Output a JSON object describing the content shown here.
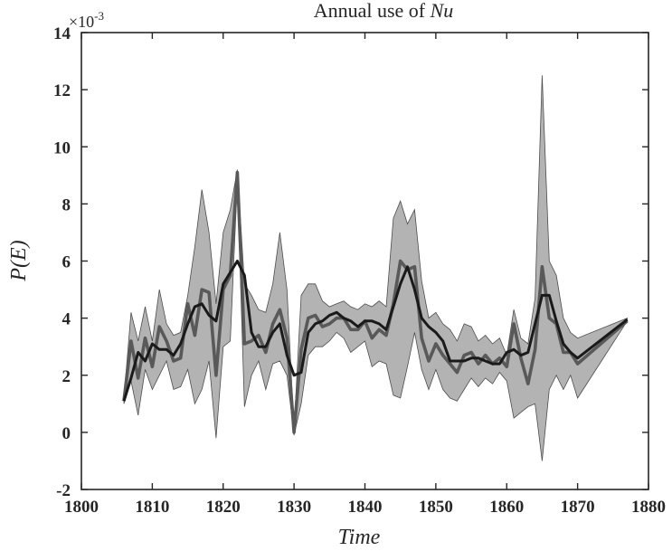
{
  "chart_data": {
    "type": "line",
    "title_prefix": "Annual use of ",
    "title_symbol": "Nu",
    "xlabel": "Time",
    "ylabel": "P(E)",
    "y_multiplier_base": "×10",
    "y_multiplier_exp": "-3",
    "xlim": [
      1800,
      1880
    ],
    "ylim": [
      -2,
      14
    ],
    "xticks": [
      1800,
      1810,
      1820,
      1830,
      1840,
      1850,
      1860,
      1870,
      1880
    ],
    "yticks": [
      -2,
      0,
      2,
      4,
      6,
      8,
      10,
      12,
      14
    ],
    "grid": false,
    "colors": {
      "band": "#b3b3b3",
      "band_edge": "#4d4d4d",
      "annual": "#595959",
      "smoothed": "#1a1a1a",
      "axis": "#262626"
    },
    "band": {
      "x": [
        1806,
        1807,
        1808,
        1809,
        1810,
        1811,
        1812,
        1813,
        1814,
        1815,
        1816,
        1817,
        1818,
        1819,
        1820,
        1821,
        1822,
        1823,
        1824,
        1825,
        1826,
        1827,
        1828,
        1829,
        1830,
        1831,
        1832,
        1833,
        1834,
        1835,
        1836,
        1837,
        1838,
        1839,
        1840,
        1841,
        1842,
        1843,
        1844,
        1845,
        1846,
        1847,
        1848,
        1849,
        1850,
        1851,
        1852,
        1853,
        1854,
        1855,
        1856,
        1857,
        1858,
        1859,
        1860,
        1861,
        1862,
        1863,
        1864,
        1865,
        1866,
        1867,
        1868,
        1869,
        1870,
        1877
      ],
      "upper": [
        1.2,
        4.2,
        3.2,
        4.4,
        3.2,
        5.0,
        3.8,
        3.4,
        3.5,
        4.8,
        6.5,
        8.5,
        7.0,
        4.5,
        7.0,
        7.8,
        9.2,
        5.2,
        4.8,
        4.3,
        4.2,
        5.2,
        7.0,
        5.0,
        0.1,
        4.8,
        5.2,
        5.2,
        4.6,
        4.4,
        4.5,
        4.6,
        4.4,
        4.3,
        4.5,
        4.4,
        4.6,
        4.4,
        7.5,
        8.1,
        7.3,
        7.8,
        5.3,
        4.0,
        4.2,
        3.8,
        3.6,
        3.2,
        3.8,
        3.7,
        3.2,
        3.4,
        3.1,
        3.3,
        2.7,
        4.3,
        3.3,
        3.1,
        4.7,
        12.5,
        6.0,
        5.5,
        4.0,
        3.5,
        3.3,
        4.0
      ],
      "lower": [
        1.0,
        1.8,
        0.6,
        2.2,
        1.5,
        2.0,
        2.5,
        1.5,
        1.6,
        2.2,
        1.0,
        1.5,
        2.5,
        -0.2,
        3.0,
        3.2,
        8.8,
        0.9,
        2.0,
        2.5,
        1.5,
        2.4,
        2.5,
        2.0,
        -0.1,
        1.0,
        2.7,
        3.0,
        3.0,
        3.2,
        3.5,
        3.3,
        2.8,
        3.0,
        3.2,
        2.3,
        2.5,
        2.4,
        1.3,
        1.2,
        2.3,
        3.5,
        2.2,
        1.5,
        2.2,
        1.5,
        1.2,
        1.1,
        1.5,
        1.9,
        1.6,
        1.9,
        1.7,
        2.1,
        1.8,
        0.5,
        0.7,
        0.9,
        1.0,
        -1.0,
        1.5,
        2.0,
        1.5,
        2.0,
        1.2,
        3.9
      ]
    },
    "series": [
      {
        "x": [
          1806,
          1807,
          1808,
          1809,
          1810,
          1811,
          1812,
          1813,
          1814,
          1815,
          1816,
          1817,
          1818,
          1819,
          1820,
          1821,
          1822,
          1823,
          1824,
          1825,
          1826,
          1827,
          1828,
          1829,
          1830,
          1831,
          1832,
          1833,
          1834,
          1835,
          1836,
          1837,
          1838,
          1839,
          1840,
          1841,
          1842,
          1843,
          1844,
          1845,
          1846,
          1847,
          1848,
          1849,
          1850,
          1851,
          1852,
          1853,
          1854,
          1855,
          1856,
          1857,
          1858,
          1859,
          1860,
          1861,
          1862,
          1863,
          1864,
          1865,
          1866,
          1867,
          1868,
          1869,
          1870,
          1877
        ],
        "values": [
          1.1,
          3.2,
          1.9,
          3.3,
          2.3,
          3.7,
          3.2,
          2.5,
          2.6,
          4.5,
          3.4,
          5.0,
          4.9,
          2.0,
          5.0,
          5.5,
          9.1,
          3.1,
          3.2,
          3.4,
          2.8,
          3.8,
          4.3,
          3.3,
          0.0,
          2.9,
          4.0,
          4.1,
          3.7,
          3.8,
          4.0,
          4.0,
          3.6,
          3.6,
          3.9,
          3.3,
          3.6,
          3.4,
          4.5,
          6.0,
          5.7,
          5.8,
          3.3,
          2.5,
          3.1,
          2.7,
          2.4,
          2.1,
          2.7,
          2.8,
          2.4,
          2.7,
          2.4,
          2.6,
          2.3,
          3.8,
          2.6,
          1.7,
          2.9,
          5.8,
          4.0,
          3.8,
          2.8,
          2.8,
          2.4,
          3.9
        ]
      },
      {
        "x": [
          1806,
          1807,
          1808,
          1809,
          1810,
          1811,
          1812,
          1813,
          1814,
          1815,
          1816,
          1817,
          1818,
          1819,
          1820,
          1821,
          1822,
          1823,
          1824,
          1825,
          1826,
          1827,
          1828,
          1829,
          1830,
          1831,
          1832,
          1833,
          1834,
          1835,
          1836,
          1837,
          1838,
          1839,
          1840,
          1841,
          1842,
          1843,
          1844,
          1845,
          1846,
          1847,
          1848,
          1849,
          1850,
          1851,
          1852,
          1853,
          1854,
          1855,
          1856,
          1857,
          1858,
          1859,
          1860,
          1861,
          1862,
          1863,
          1864,
          1865,
          1866,
          1867,
          1868,
          1869,
          1870,
          1877
        ],
        "values": [
          1.1,
          1.9,
          2.8,
          2.5,
          3.1,
          2.9,
          2.9,
          2.7,
          3.1,
          3.8,
          4.4,
          4.5,
          4.1,
          3.9,
          5.2,
          5.6,
          6.0,
          5.5,
          3.5,
          3.0,
          3.0,
          3.5,
          3.8,
          2.7,
          2.0,
          2.1,
          3.5,
          3.8,
          3.9,
          4.1,
          4.2,
          4.0,
          3.9,
          3.7,
          3.9,
          3.9,
          3.8,
          3.6,
          4.4,
          5.2,
          5.8,
          5.0,
          4.0,
          3.7,
          3.5,
          3.2,
          2.5,
          2.5,
          2.5,
          2.6,
          2.6,
          2.5,
          2.4,
          2.4,
          2.8,
          2.9,
          2.7,
          2.8,
          3.8,
          4.8,
          4.8,
          3.9,
          3.1,
          2.8,
          2.6,
          3.95
        ]
      }
    ]
  }
}
